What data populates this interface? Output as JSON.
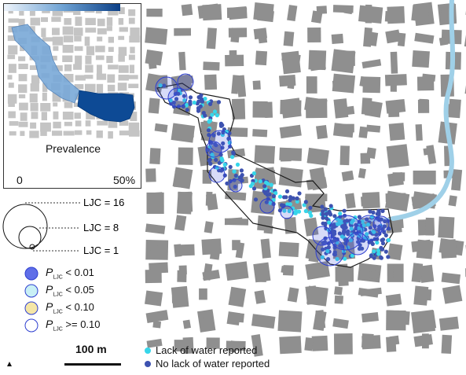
{
  "inset": {
    "title": "Prevalence",
    "min_label": "0",
    "max_label": "50%",
    "gradient": [
      "#eef4fb",
      "#6fa3d4",
      "#0b3f86"
    ]
  },
  "ljc_legend": [
    {
      "label": "LJC = 16",
      "value": 16
    },
    {
      "label": "LJC = 8",
      "value": 8
    },
    {
      "label": "LJC = 1",
      "value": 1
    }
  ],
  "p_legend": [
    {
      "symbol": "P",
      "sub": "LJC",
      "rest": " < 0.01",
      "fill": "#5f6ee8"
    },
    {
      "symbol": "P",
      "sub": "LJC",
      "rest": " < 0.05",
      "fill": "#c9f0f5"
    },
    {
      "symbol": "P",
      "sub": "LJC",
      "rest": " < 0.10",
      "fill": "#f5e6a6"
    },
    {
      "symbol": "P",
      "sub": "LJC",
      "rest": " >= 0.10",
      "fill": "#ffffff"
    }
  ],
  "point_legend": [
    {
      "label": "Lack of water reported",
      "color": "#37d6ea"
    },
    {
      "label": "No lack of water reported",
      "color": "#3d52b0"
    }
  ],
  "scale_bar": {
    "label": "100 m"
  },
  "colors": {
    "building": "#8f8f8f",
    "river": "#9fd0e8",
    "ring": "#2e3fd0",
    "sig_fill": "#4a5ae0"
  },
  "icons": {
    "north_arrow": "north-arrow-icon"
  }
}
